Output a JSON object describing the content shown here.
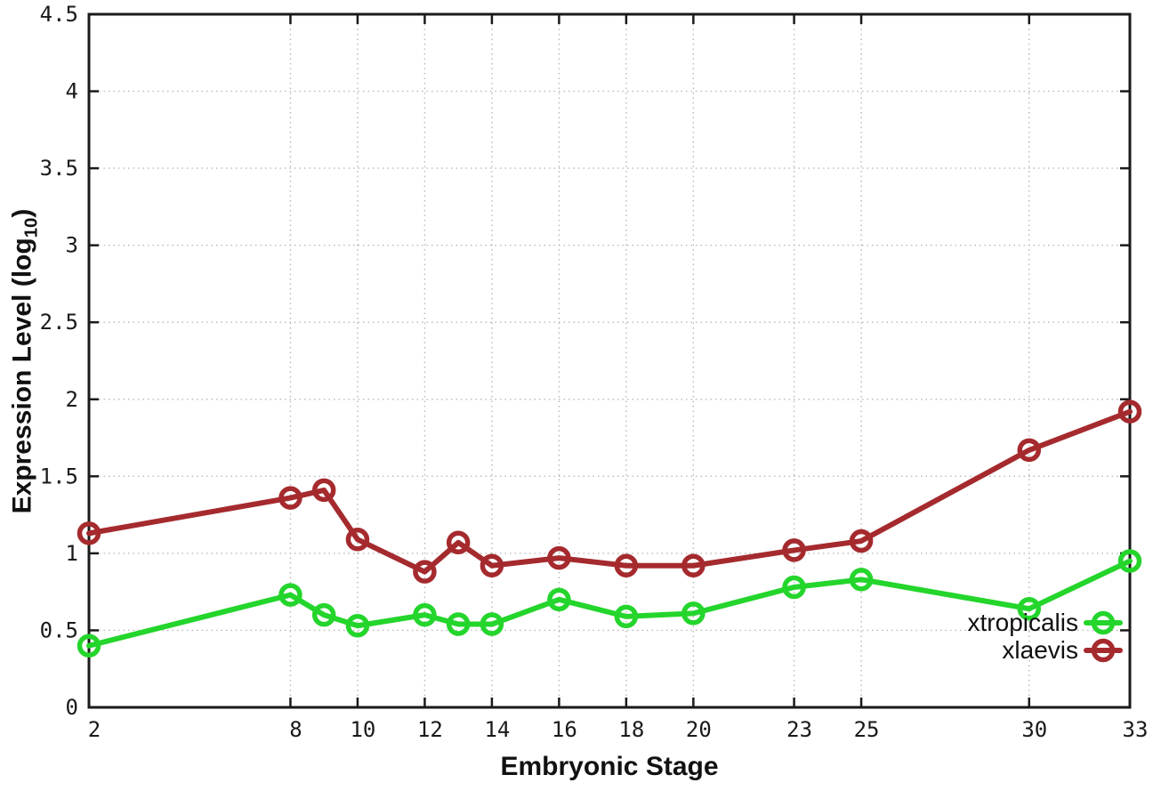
{
  "chart_data": {
    "type": "line",
    "title": "",
    "xlabel": "Embryonic Stage",
    "ylabel": "Expression Level (log10)",
    "ylabel_parts": {
      "prefix": "Expression Level (log",
      "sub": "10",
      "suffix": ")"
    },
    "xlim": [
      2,
      33
    ],
    "ylim": [
      0,
      4.5
    ],
    "grid": true,
    "legend_position": "bottom-right-inside",
    "x": [
      2,
      8,
      9,
      10,
      12,
      13,
      14,
      16,
      18,
      20,
      23,
      25,
      30,
      33
    ],
    "xticks": [
      2,
      8,
      10,
      12,
      14,
      16,
      18,
      20,
      23,
      25,
      30,
      33
    ],
    "xtick_labels": [
      "2",
      "8",
      "10",
      "12",
      "14",
      "16",
      "18",
      "20",
      "23",
      "25",
      "30",
      "33"
    ],
    "yticks": [
      0,
      0.5,
      1,
      1.5,
      2,
      2.5,
      3,
      3.5,
      4,
      4.5
    ],
    "ytick_labels": [
      "0",
      "0.5",
      "1",
      "1.5",
      "2",
      "2.5",
      "3",
      "3.5",
      "4",
      "4.5"
    ],
    "series": [
      {
        "name": "xtropicalis",
        "color": "#24d52c",
        "values": [
          0.4,
          0.73,
          0.6,
          0.53,
          0.6,
          0.54,
          0.54,
          0.7,
          0.59,
          0.61,
          0.78,
          0.83,
          0.64,
          0.95
        ]
      },
      {
        "name": "xlaevis",
        "color": "#a52a2e",
        "values": [
          1.13,
          1.36,
          1.41,
          1.09,
          0.88,
          1.07,
          0.92,
          0.97,
          0.92,
          0.92,
          1.02,
          1.08,
          1.67,
          1.92
        ]
      }
    ],
    "colors": {
      "background": "#ffffff",
      "border": "#1a1a1a",
      "grid": "#b8b8b8",
      "text": "#1a1a1a"
    }
  }
}
